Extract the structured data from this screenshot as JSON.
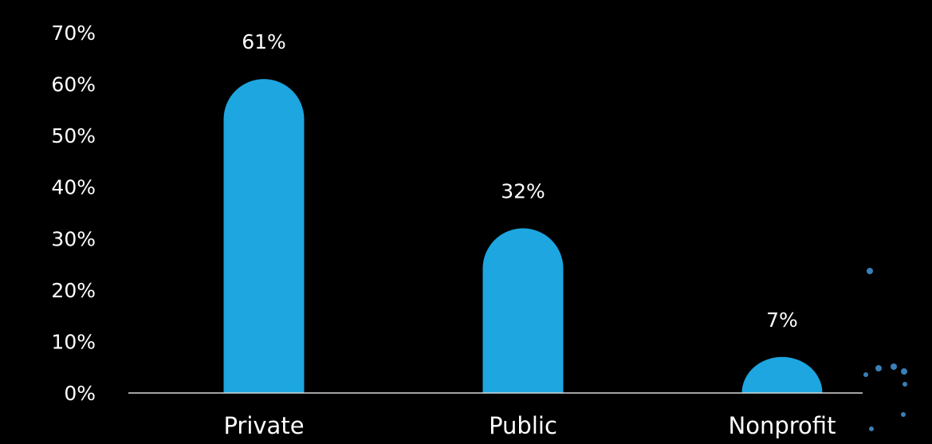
{
  "colors": {
    "background": "#000000",
    "bar": "#1da6e0",
    "axis": "#d9d9d9",
    "text": "#ffffff",
    "bubble": "#3a7fb8"
  },
  "chart_data": {
    "type": "bar",
    "categories": [
      "Private",
      "Public",
      "Nonprofit"
    ],
    "values": [
      61,
      32,
      7
    ],
    "data_labels": [
      "61%",
      "32%",
      "7%"
    ],
    "y_ticks": [
      "0%",
      "10%",
      "20%",
      "30%",
      "40%",
      "50%",
      "60%",
      "70%"
    ],
    "ylim": [
      0,
      70
    ],
    "grid": false,
    "legend": "none",
    "title": "",
    "xlabel": "",
    "ylabel": ""
  }
}
